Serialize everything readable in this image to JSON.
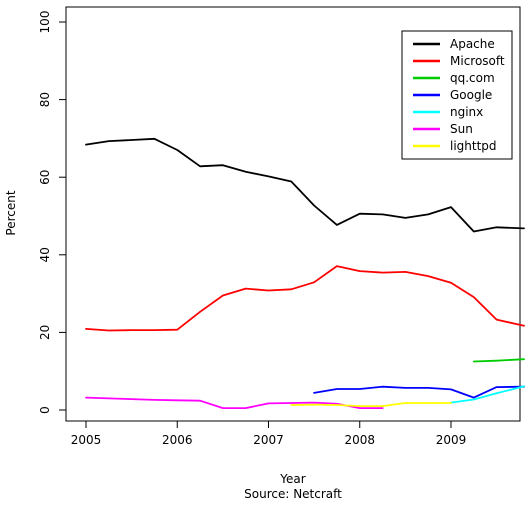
{
  "chart_data": {
    "type": "line",
    "title": "",
    "xlabel": "Year",
    "caption": "Source:  Netcraft",
    "ylabel": "Percent",
    "xlim": [
      2005.0,
      2009.8
    ],
    "ylim": [
      0,
      100
    ],
    "x_ticks": [
      2005,
      2006,
      2007,
      2008,
      2009
    ],
    "y_ticks": [
      0,
      20,
      40,
      60,
      80,
      100
    ],
    "grid": false,
    "legend_position": "top-right",
    "series": [
      {
        "name": "Apache",
        "color": "#000000",
        "x": [
          2005.0,
          2005.25,
          2005.5,
          2005.75,
          2006.0,
          2006.25,
          2006.5,
          2006.75,
          2007.0,
          2007.25,
          2007.5,
          2007.75,
          2008.0,
          2008.25,
          2008.5,
          2008.75,
          2009.0,
          2009.25,
          2009.5,
          2009.8
        ],
        "y": [
          68.4,
          69.3,
          69.6,
          69.9,
          67.0,
          62.8,
          63.1,
          61.4,
          60.2,
          58.9,
          52.7,
          47.7,
          50.6,
          50.4,
          49.5,
          50.4,
          52.3,
          46.0,
          47.1,
          46.8
        ]
      },
      {
        "name": "Microsoft",
        "color": "#ff0000",
        "x": [
          2005.0,
          2005.25,
          2005.5,
          2005.75,
          2006.0,
          2006.25,
          2006.5,
          2006.75,
          2007.0,
          2007.25,
          2007.5,
          2007.75,
          2008.0,
          2008.25,
          2008.5,
          2008.75,
          2009.0,
          2009.25,
          2009.5,
          2009.8
        ],
        "y": [
          20.9,
          20.5,
          20.6,
          20.6,
          20.7,
          25.3,
          29.5,
          31.3,
          30.8,
          31.1,
          32.9,
          37.1,
          35.8,
          35.4,
          35.6,
          34.5,
          32.8,
          29.1,
          23.3,
          21.7
        ]
      },
      {
        "name": "qq.com",
        "color": "#00cd00",
        "x": [
          2009.25,
          2009.5,
          2009.8
        ],
        "y": [
          12.5,
          12.7,
          13.1
        ]
      },
      {
        "name": "Google",
        "color": "#0000ff",
        "x": [
          2007.5,
          2007.75,
          2008.0,
          2008.25,
          2008.5,
          2008.75,
          2009.0,
          2009.25,
          2009.5,
          2009.8
        ],
        "y": [
          4.4,
          5.4,
          5.4,
          6.0,
          5.7,
          5.7,
          5.3,
          3.2,
          5.9,
          6.0
        ]
      },
      {
        "name": "nginx",
        "color": "#00ffff",
        "x": [
          2009.0,
          2009.25,
          2009.5,
          2009.8
        ],
        "y": [
          1.9,
          2.7,
          4.3,
          6.1
        ]
      },
      {
        "name": "Sun",
        "color": "#ff00ff",
        "x": [
          2005.0,
          2005.25,
          2005.5,
          2005.75,
          2006.0,
          2006.25,
          2006.5,
          2006.75,
          2007.0,
          2007.25,
          2007.5,
          2007.75,
          2008.0,
          2008.25
        ],
        "y": [
          3.2,
          3.0,
          2.8,
          2.6,
          2.5,
          2.4,
          0.5,
          0.5,
          1.7,
          1.8,
          1.9,
          1.6,
          0.5,
          0.5
        ]
      },
      {
        "name": "lighttpd",
        "color": "#ffff00",
        "x": [
          2007.25,
          2007.5,
          2007.75,
          2008.0,
          2008.25,
          2008.5,
          2008.75,
          2009.0
        ],
        "y": [
          1.3,
          1.4,
          1.3,
          1.0,
          1.0,
          1.8,
          1.8,
          1.8
        ]
      }
    ]
  }
}
